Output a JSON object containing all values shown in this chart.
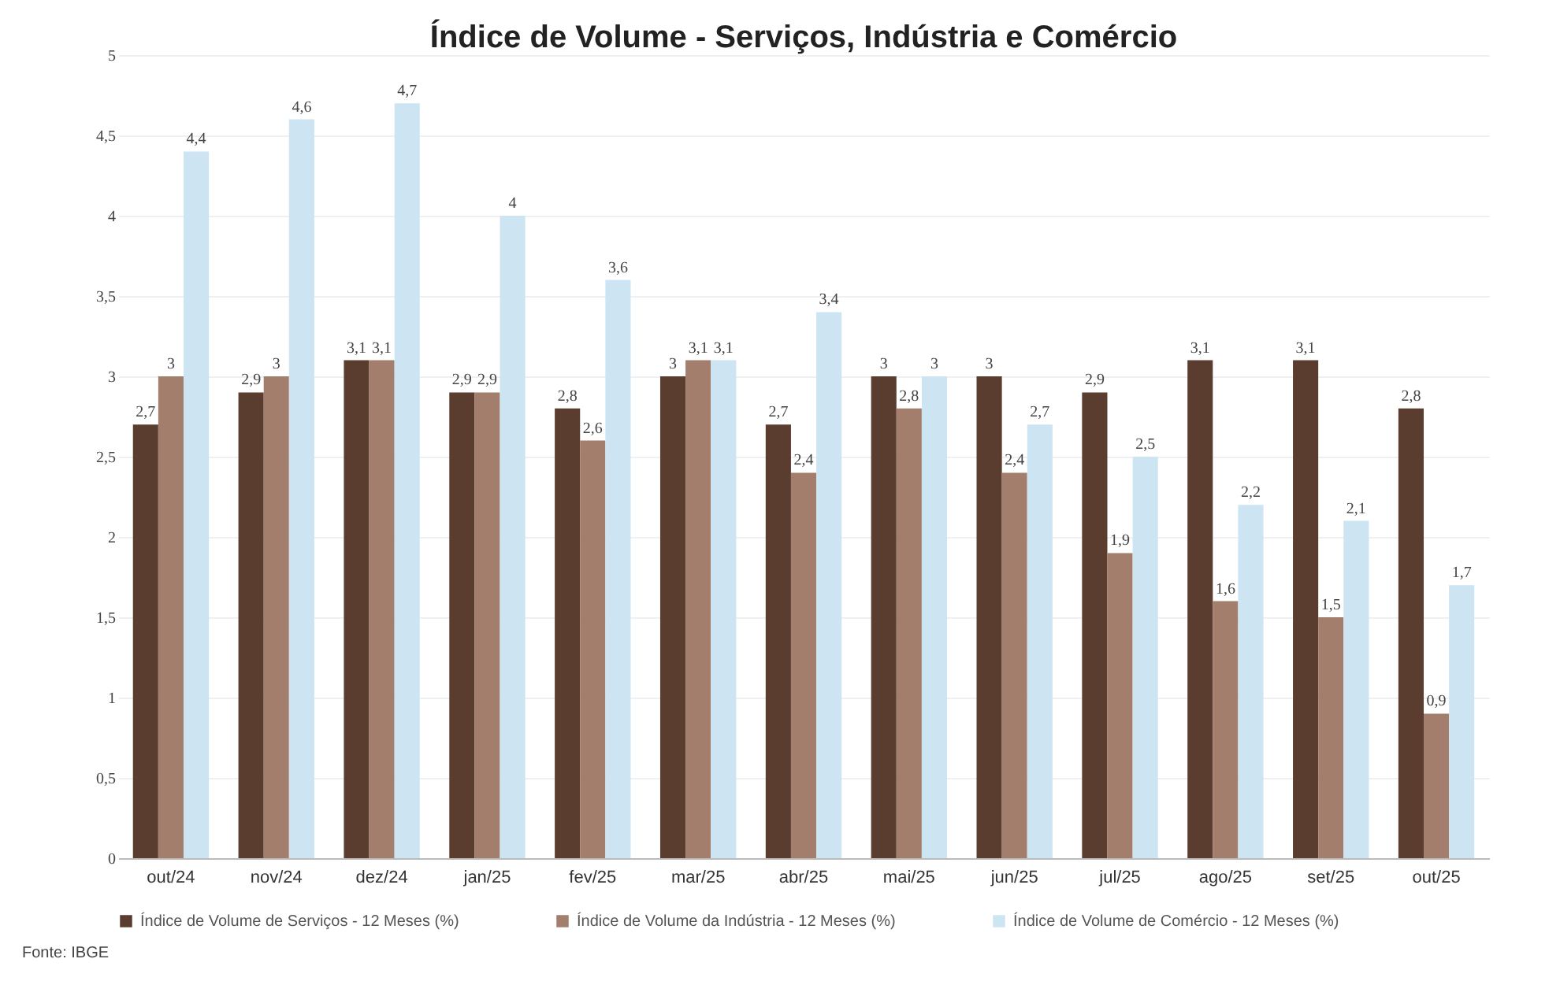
{
  "chart_data": {
    "type": "bar",
    "title": "Índice de Volume - Serviços, Indústria e Comércio",
    "categories": [
      "out/24",
      "nov/24",
      "dez/24",
      "jan/25",
      "fev/25",
      "mar/25",
      "abr/25",
      "mai/25",
      "jun/25",
      "jul/25",
      "ago/25",
      "set/25",
      "out/25"
    ],
    "series": [
      {
        "name": "Índice de Volume de Serviços - 12 Meses (%)",
        "color": "#5b3d30",
        "values": [
          2.7,
          2.9,
          3.1,
          2.9,
          2.8,
          3,
          2.7,
          3,
          3,
          2.9,
          3.1,
          3.1,
          2.8
        ],
        "value_labels": [
          "2,7",
          "2,9",
          "3,1",
          "2,9",
          "2,8",
          "3",
          "2,7",
          "3",
          "3",
          "2,9",
          "3,1",
          "3,1",
          "2,8"
        ]
      },
      {
        "name": "Índice de Volume da Indústria - 12 Meses (%)",
        "color": "#a47e6c",
        "values": [
          3,
          3,
          3.1,
          2.9,
          2.6,
          3.1,
          2.4,
          2.8,
          2.4,
          1.9,
          1.6,
          1.5,
          0.9
        ],
        "value_labels": [
          "3",
          "3",
          "3,1",
          "2,9",
          "2,6",
          "3,1",
          "2,4",
          "2,8",
          "2,4",
          "1,9",
          "1,6",
          "1,5",
          "0,9"
        ]
      },
      {
        "name": "Índice de Volume de Comércio - 12 Meses (%)",
        "color": "#cde5f3",
        "values": [
          4.4,
          4.6,
          4.7,
          4,
          3.6,
          3.1,
          3.4,
          3,
          2.7,
          2.5,
          2.2,
          2.1,
          1.7
        ],
        "value_labels": [
          "4,4",
          "4,6",
          "4,7",
          "4",
          "3,6",
          "3,1",
          "3,4",
          "3",
          "2,7",
          "2,5",
          "2,2",
          "2,1",
          "1,7"
        ]
      }
    ],
    "ylim": [
      0,
      5
    ],
    "yticks": [
      0,
      {
        "value": 0.5,
        "label": "0,5"
      },
      1,
      {
        "value": 1.5,
        "label": "1,5"
      },
      2,
      {
        "value": 2.5,
        "label": "2,5"
      },
      3,
      {
        "value": 3.5,
        "label": "3,5"
      },
      4,
      {
        "value": 4.5,
        "label": "4,5"
      },
      5
    ],
    "grid": "y",
    "legend": "bottom",
    "annotations": [
      "Fonte: IBGE"
    ]
  }
}
